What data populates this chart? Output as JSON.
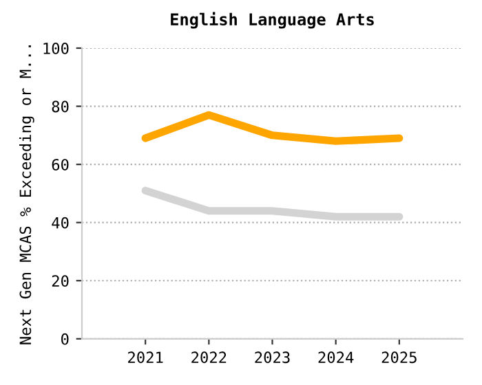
{
  "chart_data": {
    "type": "line",
    "title": "English Language Arts",
    "ylabel": "Next Gen MCAS % Exceeding or M...",
    "categories": [
      "2021",
      "2022",
      "2023",
      "2024",
      "2025"
    ],
    "series": [
      {
        "color": "#ffa500",
        "values": [
          69,
          77,
          70,
          68,
          69
        ]
      },
      {
        "color": "#d3d3d3",
        "values": [
          51,
          44,
          44,
          42,
          42
        ]
      }
    ],
    "ylim": [
      0,
      100
    ],
    "yticks": [
      0,
      20,
      40,
      60,
      80,
      100
    ],
    "grid": "y",
    "legend": false,
    "marker": "none",
    "line_style": "solid"
  }
}
